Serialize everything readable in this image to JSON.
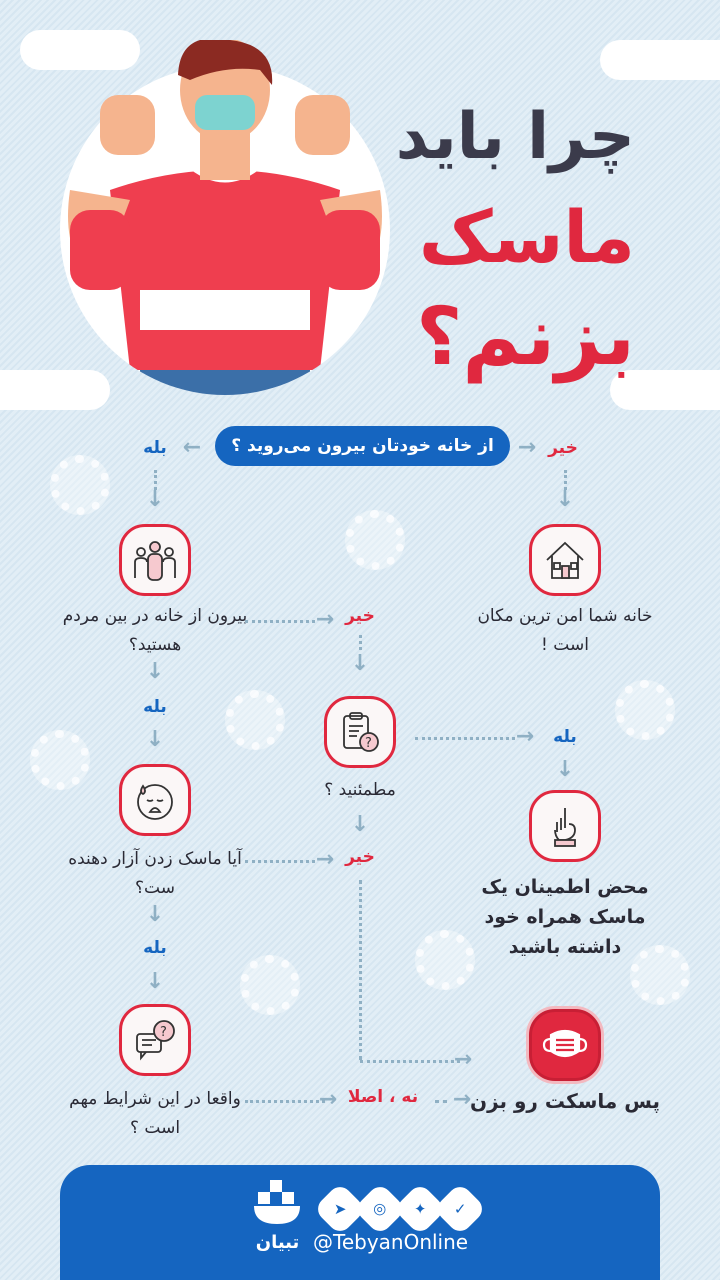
{
  "title": {
    "line1": "چرا باید",
    "line2": "ماسک",
    "line3": "بزنم؟"
  },
  "colors": {
    "accent_red": "#e0283f",
    "accent_blue": "#1565c0",
    "title_dark": "#3b3b4b"
  },
  "start_question": "از خانه خودتان بیرون می‌روید ؟",
  "labels": {
    "yes": "بله",
    "no": "خیر",
    "not_at_all": "نه ، اصلا"
  },
  "nodes": {
    "safe_home": {
      "text": "خانه شما امن ترین مکان است !",
      "icon": "house-icon"
    },
    "among_people": {
      "text": "بیرون از خانه در بین مردم هستید؟",
      "icon": "people-icon"
    },
    "sure": {
      "text": "مطمئنید ؟",
      "icon": "clipboard-question-icon"
    },
    "carry_mask": {
      "text": "محض اطمینان یک ماسک همراه خود داشته باشید",
      "icon": "finger-up-icon"
    },
    "annoying": {
      "text": "آیا ماسک زدن آزار دهنده ست؟",
      "icon": "sad-face-icon"
    },
    "important": {
      "text": "واقعا در این شرایط مهم است ؟",
      "icon": "chat-question-icon"
    },
    "wear_mask": {
      "text": "پس ماسکت رو بزن",
      "icon": "mask-icon"
    }
  },
  "footer": {
    "handle": "@TebyanOnline",
    "logo_text": "تبیان",
    "social_icons": [
      "telegram-icon",
      "instagram-icon",
      "twitter-icon",
      "verified-icon"
    ]
  }
}
